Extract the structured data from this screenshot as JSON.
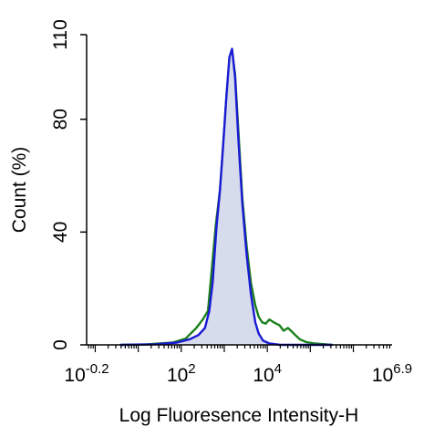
{
  "chart_data": {
    "type": "area",
    "xlabel": "Log Fluoresence Intensity-H",
    "ylabel": "Count  (%)",
    "xscale": "log",
    "xlim": [
      -0.2,
      6.9
    ],
    "ylim": [
      0,
      110
    ],
    "x_ticks": [
      {
        "base": "10",
        "exp": "-0.2",
        "value": -0.2
      },
      {
        "base": "10",
        "exp": "2",
        "value": 2
      },
      {
        "base": "10",
        "exp": "4",
        "value": 4
      },
      {
        "base": "10",
        "exp": "6.9",
        "value": 6.9
      }
    ],
    "y_ticks": [
      {
        "label": "0",
        "value": 0
      },
      {
        "label": "40",
        "value": 40
      },
      {
        "label": "80",
        "value": 80
      },
      {
        "label": "110",
        "value": 110
      }
    ],
    "grid": false,
    "legend": "none",
    "series": [
      {
        "color": "#1a7f1a",
        "style": "line",
        "points": [
          [
            0.6,
            0
          ],
          [
            1.2,
            0.2
          ],
          [
            1.8,
            0.8
          ],
          [
            2.1,
            2.2
          ],
          [
            2.35,
            6
          ],
          [
            2.5,
            9
          ],
          [
            2.62,
            12
          ],
          [
            2.7,
            25
          ],
          [
            2.8,
            42
          ],
          [
            2.9,
            55
          ],
          [
            2.98,
            72
          ],
          [
            3.05,
            88
          ],
          [
            3.12,
            101
          ],
          [
            3.18,
            104
          ],
          [
            3.25,
            96
          ],
          [
            3.33,
            75
          ],
          [
            3.42,
            52
          ],
          [
            3.52,
            35
          ],
          [
            3.62,
            22
          ],
          [
            3.72,
            14
          ],
          [
            3.8,
            10
          ],
          [
            3.88,
            8
          ],
          [
            3.96,
            7.5
          ],
          [
            4.05,
            9
          ],
          [
            4.15,
            8
          ],
          [
            4.28,
            7
          ],
          [
            4.38,
            5
          ],
          [
            4.48,
            6
          ],
          [
            4.55,
            5
          ],
          [
            4.65,
            3.5
          ],
          [
            4.75,
            2
          ],
          [
            4.9,
            1
          ],
          [
            5.1,
            0.5
          ],
          [
            5.5,
            0
          ]
        ]
      },
      {
        "color": "#1a1ad4",
        "fill": "#d6dcec",
        "style": "filled",
        "points": [
          [
            0.6,
            0
          ],
          [
            1.4,
            0.2
          ],
          [
            1.9,
            0.8
          ],
          [
            2.2,
            2
          ],
          [
            2.4,
            3.5
          ],
          [
            2.55,
            6
          ],
          [
            2.65,
            12
          ],
          [
            2.73,
            22
          ],
          [
            2.82,
            42
          ],
          [
            2.9,
            55
          ],
          [
            2.97,
            70
          ],
          [
            3.05,
            88
          ],
          [
            3.12,
            102
          ],
          [
            3.18,
            105
          ],
          [
            3.25,
            95
          ],
          [
            3.33,
            72
          ],
          [
            3.42,
            50
          ],
          [
            3.52,
            32
          ],
          [
            3.62,
            18
          ],
          [
            3.72,
            8
          ],
          [
            3.8,
            4
          ],
          [
            3.9,
            1.5
          ],
          [
            4.05,
            0.5
          ],
          [
            4.3,
            0
          ],
          [
            5.5,
            0
          ]
        ]
      }
    ]
  }
}
